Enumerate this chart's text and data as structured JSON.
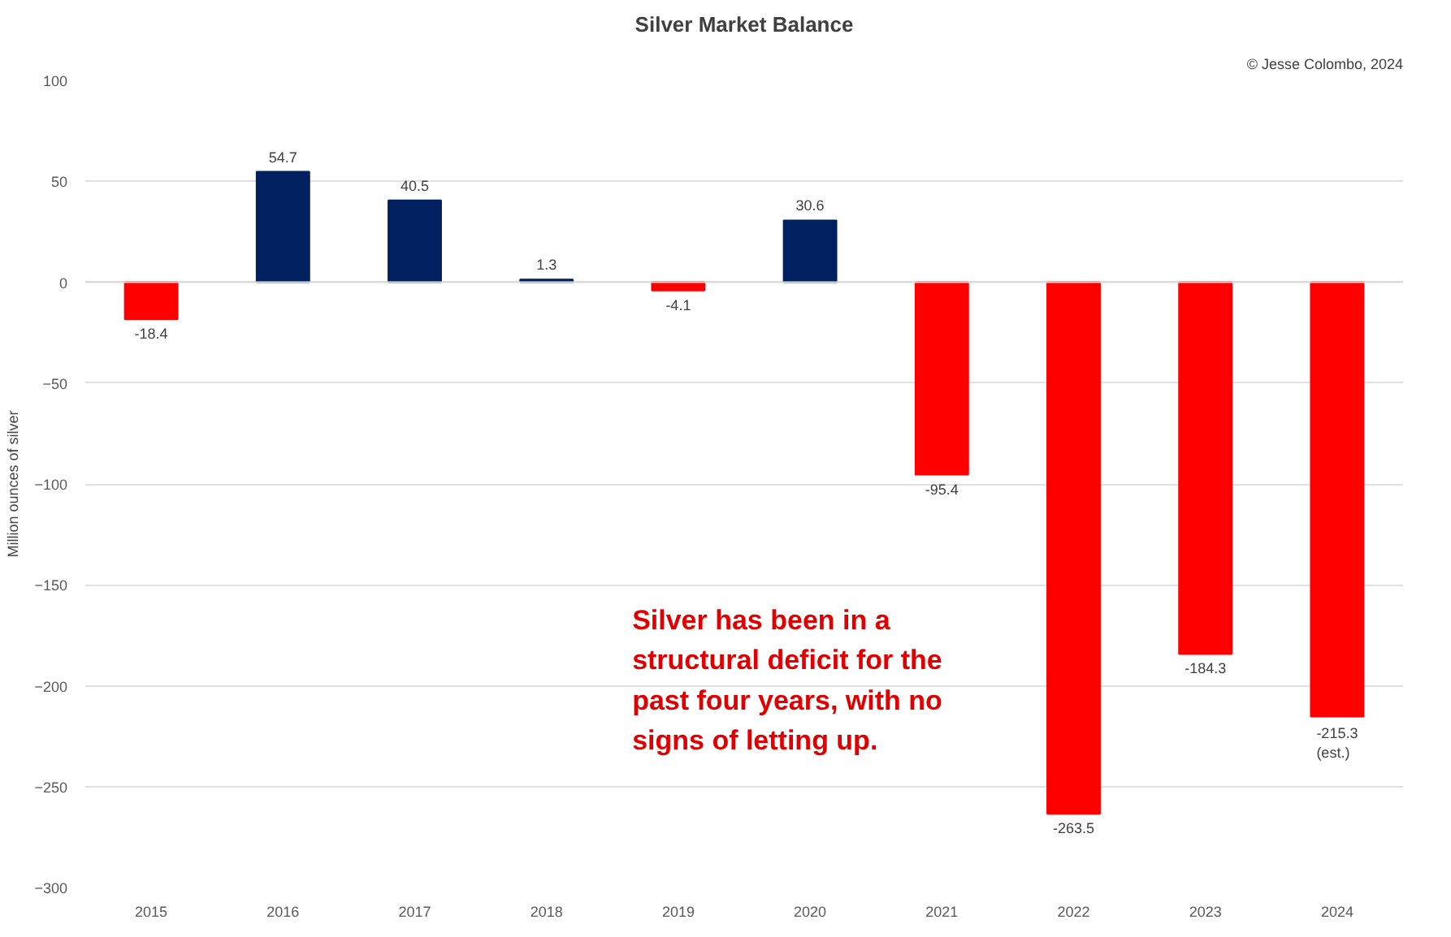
{
  "chart_data": {
    "type": "bar",
    "title": "Silver Market Balance",
    "ylabel": "Million ounces of silver",
    "categories": [
      "2015",
      "2016",
      "2017",
      "2018",
      "2019",
      "2020",
      "2021",
      "2022",
      "2023",
      "2024"
    ],
    "values": [
      -18.4,
      54.7,
      40.5,
      1.3,
      -4.1,
      30.6,
      -95.4,
      -263.5,
      -184.3,
      -215.3
    ],
    "colors": [
      "#ff0000",
      "#002060",
      "#002060",
      "#002060",
      "#ff0000",
      "#002060",
      "#ff0000",
      "#ff0000",
      "#ff0000",
      "#ff0000"
    ],
    "value_labels": [
      "-18.4",
      "54.7",
      "40.5",
      "1.3",
      "-4.1",
      "30.6",
      "-95.4",
      "-263.5",
      "-184.3",
      "-215.3\n(est.)"
    ],
    "ylim": [
      -300,
      100
    ],
    "yticks": [
      -300,
      -250,
      -200,
      -150,
      -100,
      -50,
      0,
      50,
      100
    ],
    "grid": "y",
    "annotations": [
      "© Jesse Colombo, 2024",
      "Silver has been in a\nstructural deficit for the\npast four years, with no\nsigns of letting up."
    ]
  }
}
